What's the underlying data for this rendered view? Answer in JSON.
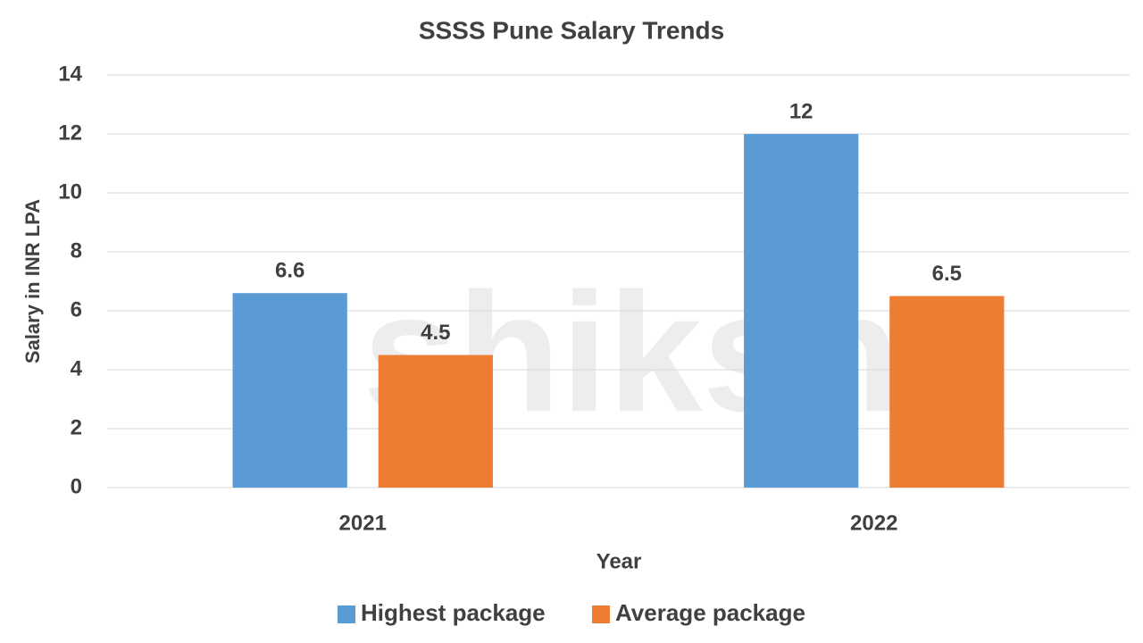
{
  "chart_data": {
    "type": "bar",
    "title": "SSSS Pune Salary Trends",
    "watermark": "shiksha",
    "x_label": "Year",
    "y_label": "Salary in INR LPA",
    "categories": [
      "2021",
      "2022"
    ],
    "series": [
      {
        "name": "Highest package",
        "color": "#5b9bd5",
        "values": [
          6.6,
          12
        ]
      },
      {
        "name": "Average package",
        "color": "#ed7d31",
        "values": [
          4.5,
          6.5
        ]
      }
    ],
    "ylim": [
      0,
      14
    ],
    "yticks": [
      0,
      2,
      4,
      6,
      8,
      10,
      12,
      14
    ],
    "grid": true,
    "legend": "bottom"
  }
}
